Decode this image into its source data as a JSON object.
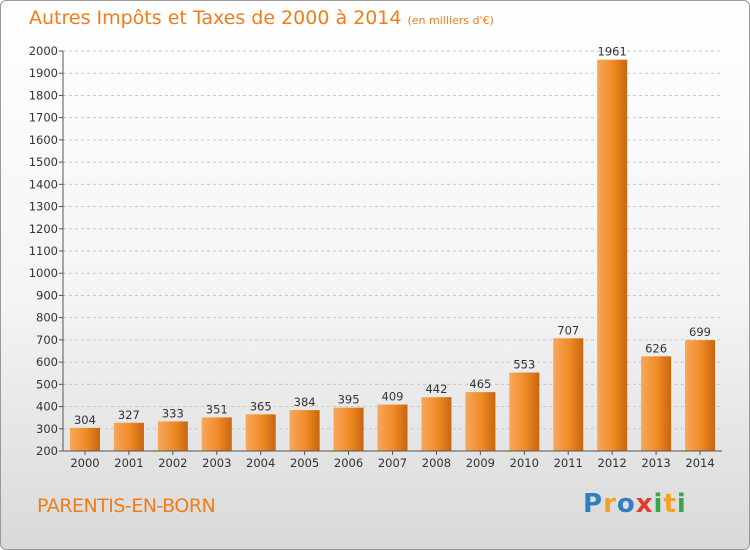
{
  "chart_data": {
    "type": "bar",
    "title": "Autres Impôts et Taxes de 2000 à 2014",
    "unit_note": "(en milliers d'€)",
    "categories": [
      "2000",
      "2001",
      "2002",
      "2003",
      "2004",
      "2005",
      "2006",
      "2007",
      "2008",
      "2009",
      "2010",
      "2011",
      "2012",
      "2013",
      "2014"
    ],
    "values": [
      304,
      327,
      333,
      351,
      365,
      384,
      395,
      409,
      442,
      465,
      553,
      707,
      1961,
      626,
      699
    ],
    "ylim": [
      200,
      2000
    ],
    "yticks": [
      200,
      300,
      400,
      500,
      600,
      700,
      800,
      900,
      1000,
      1100,
      1200,
      1300,
      1400,
      1500,
      1600,
      1700,
      1800,
      1900,
      2000
    ],
    "xlabel": "",
    "ylabel": "",
    "grid": "horizontal dashed",
    "bar_color": "#f08a24"
  },
  "footer": {
    "city": "PARENTIS-EN-BORN",
    "logo_letters": [
      "P",
      "r",
      "o",
      "x",
      "i",
      "t",
      "i"
    ],
    "logo_colors": [
      "#2f7fc1",
      "#f4a224",
      "#2f7fc1",
      "#e23b2e",
      "#3aa64a",
      "#f4a224",
      "#3aa64a"
    ]
  }
}
